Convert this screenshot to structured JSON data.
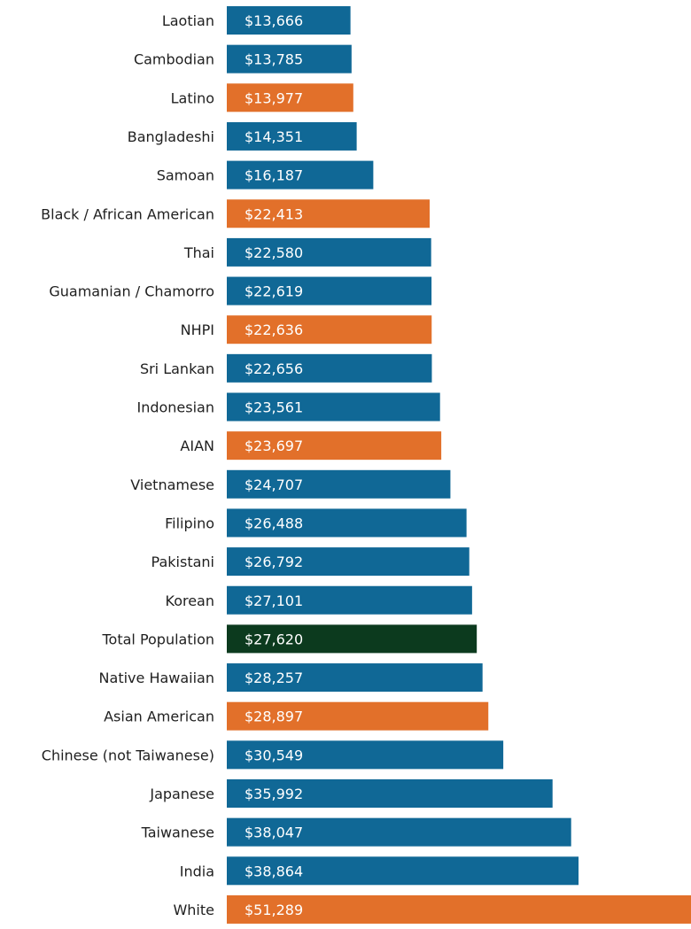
{
  "chart_data": {
    "type": "bar",
    "orientation": "horizontal",
    "title": "",
    "xlabel": "",
    "ylabel": "",
    "xlim": [
      0,
      51289
    ],
    "grid": false,
    "legend": "none",
    "value_prefix": "$",
    "categories": [
      "Laotian",
      "Cambodian",
      "Latino",
      "Bangladeshi",
      "Samoan",
      "Black / African American",
      "Thai",
      "Guamanian / Chamorro",
      "NHPI",
      "Sri Lankan",
      "Indonesian",
      "AIAN",
      "Vietnamese",
      "Filipino",
      "Pakistani",
      "Korean",
      "Total Population",
      "Native Hawaiian",
      "Asian American",
      "Chinese (not Taiwanese)",
      "Japanese",
      "Taiwanese",
      "India",
      "White"
    ],
    "values": [
      13666,
      13785,
      13977,
      14351,
      16187,
      22413,
      22580,
      22619,
      22636,
      22656,
      23561,
      23697,
      24707,
      26488,
      26792,
      27101,
      27620,
      28257,
      28897,
      30549,
      35992,
      38047,
      38864,
      51289
    ],
    "value_labels": [
      "$13,666",
      "$13,785",
      "$13,977",
      "$14,351",
      "$16,187",
      "$22,413",
      "$22,580",
      "$22,619",
      "$22,636",
      "$22,656",
      "$23,561",
      "$23,697",
      "$24,707",
      "$26,488",
      "$26,792",
      "$27,101",
      "$27,620",
      "$28,257",
      "$28,897",
      "$30,549",
      "$35,992",
      "$38,047",
      "$38,864",
      "$51,289"
    ],
    "bar_groups": [
      "detail",
      "detail",
      "aggregate",
      "detail",
      "detail",
      "aggregate",
      "detail",
      "detail",
      "aggregate",
      "detail",
      "detail",
      "aggregate",
      "detail",
      "detail",
      "detail",
      "detail",
      "total",
      "detail",
      "aggregate",
      "detail",
      "detail",
      "detail",
      "detail",
      "aggregate"
    ],
    "colors": {
      "detail": "#106896",
      "aggregate": "#e2702a",
      "total": "#0c3a1e"
    }
  }
}
